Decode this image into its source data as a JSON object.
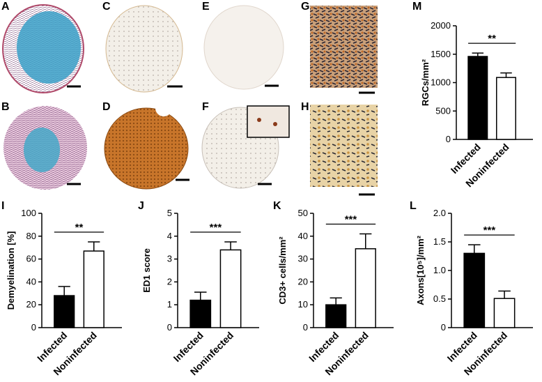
{
  "image_panels": [
    "A",
    "B",
    "C",
    "D",
    "E",
    "F",
    "G",
    "H"
  ],
  "chart_data": [
    {
      "type": "bar",
      "panel": "M",
      "ylabel": "RGCs/mm²",
      "categories": [
        "Infected",
        "Noninfected"
      ],
      "values": [
        1460,
        1090
      ],
      "errors": [
        60,
        80
      ],
      "colors": [
        "#000000",
        "#ffffff"
      ],
      "significance": "**",
      "ylim": [
        0,
        2000
      ],
      "yticks": [
        0,
        500,
        1000,
        1500,
        2000
      ]
    },
    {
      "type": "bar",
      "panel": "I",
      "ylabel": "Demyelination [%]",
      "categories": [
        "Infected",
        "Noninfected"
      ],
      "values": [
        28,
        67
      ],
      "errors": [
        8,
        8
      ],
      "colors": [
        "#000000",
        "#ffffff"
      ],
      "significance": "**",
      "ylim": [
        0,
        100
      ],
      "yticks": [
        0,
        20,
        40,
        60,
        80,
        100
      ]
    },
    {
      "type": "bar",
      "panel": "J",
      "ylabel": "ED1 score",
      "categories": [
        "Infected",
        "Noninfected"
      ],
      "values": [
        1.2,
        3.4
      ],
      "errors": [
        0.35,
        0.35
      ],
      "colors": [
        "#000000",
        "#ffffff"
      ],
      "significance": "***",
      "ylim": [
        0,
        5
      ],
      "yticks": [
        0,
        1,
        2,
        3,
        4,
        5
      ]
    },
    {
      "type": "bar",
      "panel": "K",
      "ylabel": "CD3+ cells/mm²",
      "categories": [
        "Infected",
        "Noninfected"
      ],
      "values": [
        10,
        34.5
      ],
      "errors": [
        3,
        6.5
      ],
      "colors": [
        "#000000",
        "#ffffff"
      ],
      "significance": "***",
      "ylim": [
        0,
        50
      ],
      "yticks": [
        0,
        10,
        20,
        30,
        40,
        50
      ]
    },
    {
      "type": "bar",
      "panel": "L",
      "ylabel": "Axons[10⁵]/mm²",
      "categories": [
        "Infected",
        "Noninfected"
      ],
      "values": [
        1.3,
        0.51
      ],
      "errors": [
        0.15,
        0.13
      ],
      "colors": [
        "#000000",
        "#ffffff"
      ],
      "significance": "***",
      "ylim": [
        0,
        2
      ],
      "yticks": [
        0,
        0.5,
        {
          "value": 1,
          "label": "1.0"
        },
        1.5,
        {
          "value": 2,
          "label": "2.0"
        }
      ]
    }
  ]
}
